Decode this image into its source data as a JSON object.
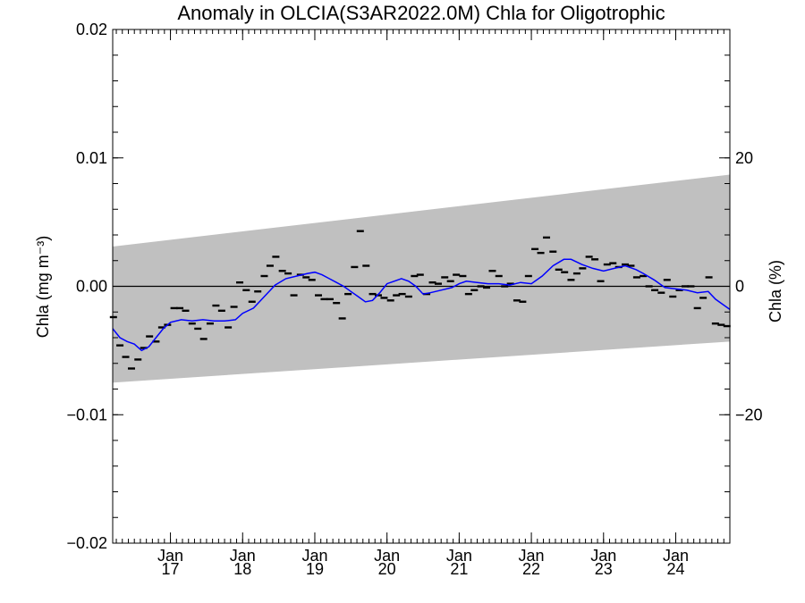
{
  "chart_data": {
    "type": "line",
    "title": "Anomaly in OLCIA(S3AR2022.0M) Chla for Oligotrophic",
    "ylabel_left": "Chla (mg m⁻³)",
    "ylabel_right": "Chla (%)",
    "ylim": [
      -0.02,
      0.02
    ],
    "ylim_right": [
      -40,
      40
    ],
    "xlim": [
      2016.2,
      2024.75
    ],
    "grid": false,
    "y_ticks": [
      {
        "value": 0.02,
        "label": "0.02"
      },
      {
        "value": 0.01,
        "label": "0.01"
      },
      {
        "value": 0.0,
        "label": "0.00"
      },
      {
        "value": -0.01,
        "label": "−0.01"
      },
      {
        "value": -0.02,
        "label": "−0.02"
      }
    ],
    "y_ticks_right": [
      {
        "value": 20,
        "label": "20"
      },
      {
        "value": 0,
        "label": "0"
      },
      {
        "value": -20,
        "label": "−20"
      }
    ],
    "x_ticks": [
      {
        "value": 2017.0,
        "label_top": "Jan",
        "label_bottom": "17"
      },
      {
        "value": 2018.0,
        "label_top": "Jan",
        "label_bottom": "18"
      },
      {
        "value": 2019.0,
        "label_top": "Jan",
        "label_bottom": "19"
      },
      {
        "value": 2020.0,
        "label_top": "Jan",
        "label_bottom": "20"
      },
      {
        "value": 2021.0,
        "label_top": "Jan",
        "label_bottom": "21"
      },
      {
        "value": 2022.0,
        "label_top": "Jan",
        "label_bottom": "22"
      },
      {
        "value": 2023.0,
        "label_top": "Jan",
        "label_bottom": "23"
      },
      {
        "value": 2024.0,
        "label_top": "Jan",
        "label_bottom": "24"
      }
    ],
    "band": {
      "start": [
        0.0031,
        -0.0075
      ],
      "end": [
        0.0087,
        -0.0043
      ]
    },
    "colors": {
      "band": "#c0c0c0",
      "smooth": "#0000ff",
      "points": "#000000",
      "zero_line": "#000000"
    },
    "points": {
      "x": [
        2016.21,
        2016.3,
        2016.38,
        2016.46,
        2016.55,
        2016.63,
        2016.71,
        2016.8,
        2016.88,
        2016.96,
        2017.05,
        2017.13,
        2017.21,
        2017.3,
        2017.38,
        2017.46,
        2017.55,
        2017.63,
        2017.71,
        2017.8,
        2017.88,
        2017.96,
        2018.05,
        2018.13,
        2018.21,
        2018.3,
        2018.38,
        2018.46,
        2018.55,
        2018.63,
        2018.71,
        2018.8,
        2018.88,
        2018.96,
        2019.05,
        2019.13,
        2019.21,
        2019.3,
        2019.38,
        2019.46,
        2019.55,
        2019.63,
        2019.71,
        2019.8,
        2019.88,
        2019.96,
        2020.05,
        2020.13,
        2020.21,
        2020.3,
        2020.38,
        2020.46,
        2020.55,
        2020.63,
        2020.71,
        2020.8,
        2020.88,
        2020.96,
        2021.05,
        2021.13,
        2021.21,
        2021.3,
        2021.38,
        2021.46,
        2021.55,
        2021.63,
        2021.71,
        2021.8,
        2021.88,
        2021.96,
        2022.05,
        2022.13,
        2022.21,
        2022.3,
        2022.38,
        2022.46,
        2022.55,
        2022.63,
        2022.71,
        2022.8,
        2022.88,
        2022.96,
        2023.05,
        2023.13,
        2023.21,
        2023.3,
        2023.38,
        2023.46,
        2023.55,
        2023.63,
        2023.71,
        2023.8,
        2023.88,
        2023.96,
        2024.05,
        2024.13,
        2024.21,
        2024.3,
        2024.38,
        2024.46,
        2024.55,
        2024.63,
        2024.71
      ],
      "y": [
        -0.0024,
        -0.0046,
        -0.0055,
        -0.0064,
        -0.0057,
        -0.0048,
        -0.0039,
        -0.0043,
        -0.0032,
        -0.003,
        -0.0017,
        -0.0017,
        -0.0019,
        -0.0029,
        -0.0033,
        -0.0041,
        -0.0029,
        -0.0015,
        -0.0019,
        -0.0032,
        -0.0016,
        0.0003,
        -0.0003,
        -0.0012,
        -0.0004,
        0.0008,
        0.0016,
        0.0023,
        0.0012,
        0.001,
        -0.0007,
        0.0009,
        0.0007,
        0.0005,
        -0.0007,
        -0.001,
        -0.001,
        -0.0013,
        -0.0025,
        -0.0006,
        0.0015,
        0.0043,
        0.0016,
        -0.0006,
        -0.0007,
        -0.0009,
        -0.0011,
        -0.0007,
        -0.0006,
        -0.0008,
        0.0008,
        0.0009,
        -0.0006,
        0.0003,
        0.0002,
        0.0007,
        0.0004,
        0.0009,
        0.0008,
        -0.0006,
        -0.0003,
        0.0,
        -0.0001,
        0.0012,
        0.0008,
        0.0,
        0.0002,
        -0.0011,
        -0.0012,
        0.0008,
        0.0029,
        0.0026,
        0.0038,
        0.0027,
        0.0013,
        0.0011,
        0.0005,
        0.001,
        0.0014,
        0.0023,
        0.0021,
        0.0004,
        0.0017,
        0.0018,
        0.0015,
        0.0017,
        0.0016,
        0.0007,
        0.0008,
        0.0,
        -0.0003,
        -0.0005,
        0.0005,
        -0.0008,
        -0.0003,
        0.0,
        0.0,
        -0.0017,
        -0.0009,
        0.0007,
        -0.0029,
        -0.003,
        -0.0031
      ]
    },
    "smooth": {
      "x": [
        2016.2,
        2016.3,
        2016.4,
        2016.5,
        2016.6,
        2016.7,
        2016.8,
        2016.9,
        2017.0,
        2017.15,
        2017.3,
        2017.45,
        2017.6,
        2017.75,
        2017.9,
        2018.0,
        2018.15,
        2018.3,
        2018.45,
        2018.6,
        2018.75,
        2018.9,
        2019.0,
        2019.1,
        2019.2,
        2019.3,
        2019.4,
        2019.5,
        2019.6,
        2019.7,
        2019.8,
        2019.9,
        2020.0,
        2020.1,
        2020.2,
        2020.3,
        2020.4,
        2020.5,
        2020.6,
        2020.75,
        2020.9,
        2021.0,
        2021.1,
        2021.25,
        2021.4,
        2021.55,
        2021.7,
        2021.85,
        2022.0,
        2022.15,
        2022.3,
        2022.45,
        2022.55,
        2022.7,
        2022.85,
        2023.0,
        2023.15,
        2023.3,
        2023.45,
        2023.55,
        2023.7,
        2023.85,
        2024.0,
        2024.15,
        2024.3,
        2024.45,
        2024.55,
        2024.65,
        2024.75
      ],
      "y": [
        -0.0033,
        -0.004,
        -0.0043,
        -0.0045,
        -0.005,
        -0.0047,
        -0.004,
        -0.0033,
        -0.0028,
        -0.0026,
        -0.0027,
        -0.0026,
        -0.0027,
        -0.0027,
        -0.0026,
        -0.0021,
        -0.0017,
        -0.0008,
        0.0001,
        0.0006,
        0.0008,
        0.001,
        0.0011,
        0.0009,
        0.0006,
        0.0003,
        0.0,
        -0.0004,
        -0.0008,
        -0.0012,
        -0.0011,
        -0.0005,
        0.0002,
        0.0004,
        0.0006,
        0.0004,
        0.0,
        -0.0006,
        -0.0005,
        -0.0003,
        -0.0001,
        0.0002,
        0.0004,
        0.0003,
        0.0002,
        0.0002,
        0.0001,
        0.0003,
        0.0002,
        0.0008,
        0.0016,
        0.0021,
        0.0021,
        0.0017,
        0.0014,
        0.0012,
        0.0014,
        0.0016,
        0.0013,
        0.001,
        0.0005,
        -0.0001,
        -0.0002,
        -0.0003,
        -0.0005,
        -0.0004,
        -0.001,
        -0.0014,
        -0.0018
      ]
    }
  }
}
